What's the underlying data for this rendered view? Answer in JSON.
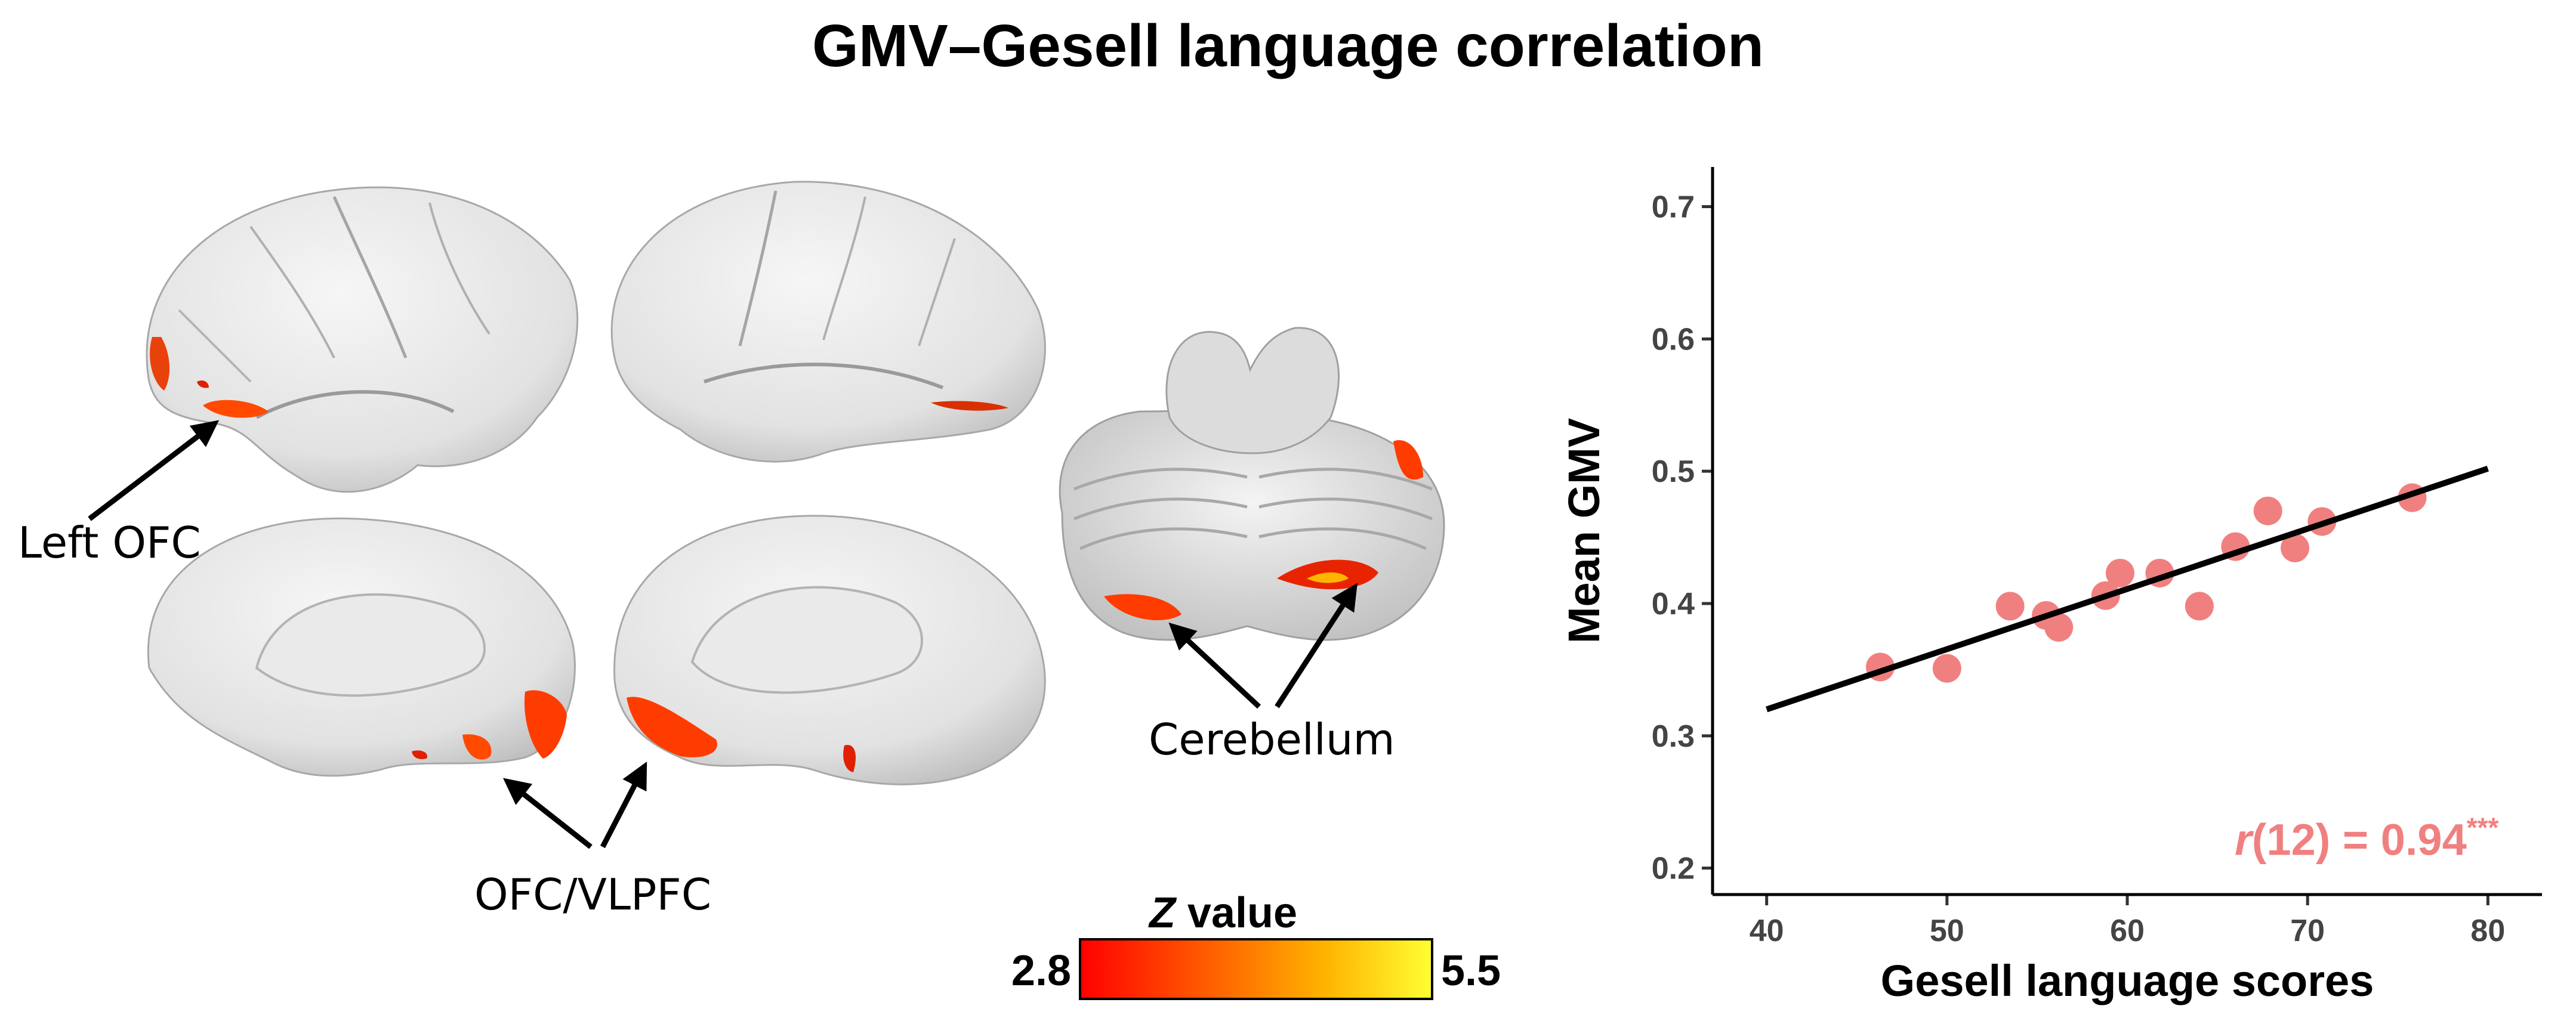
{
  "title": "GMV–Gesell language correlation",
  "brain_labels": {
    "left_ofc": "Left OFC",
    "ofc_vlpfc": "OFC/VLPFC",
    "cerebellum": "Cerebellum"
  },
  "colorbar": {
    "label_italic": "Z",
    "label_rest": " value",
    "min": "2.8",
    "max": "5.5",
    "colors": [
      "#ff0000",
      "#ff5a00",
      "#ffb400",
      "#ffff33"
    ]
  },
  "chart_data": {
    "type": "scatter",
    "xlabel": "Gesell language scores",
    "ylabel": "Mean GMV",
    "xlim": [
      37,
      83
    ],
    "ylim": [
      0.18,
      0.73
    ],
    "xticks": [
      40,
      50,
      60,
      70,
      80
    ],
    "yticks": [
      0.2,
      0.3,
      0.4,
      0.5,
      0.6,
      0.7
    ],
    "grid": false,
    "point_color": "#f08080",
    "line_color": "#000000",
    "points": [
      {
        "x": 46.3,
        "y": 0.352
      },
      {
        "x": 50.0,
        "y": 0.351
      },
      {
        "x": 53.5,
        "y": 0.398
      },
      {
        "x": 55.5,
        "y": 0.391
      },
      {
        "x": 56.2,
        "y": 0.382
      },
      {
        "x": 58.8,
        "y": 0.406
      },
      {
        "x": 59.6,
        "y": 0.423
      },
      {
        "x": 61.8,
        "y": 0.423
      },
      {
        "x": 64.0,
        "y": 0.398
      },
      {
        "x": 66.0,
        "y": 0.443
      },
      {
        "x": 67.8,
        "y": 0.47
      },
      {
        "x": 69.3,
        "y": 0.442
      },
      {
        "x": 70.8,
        "y": 0.462
      },
      {
        "x": 75.8,
        "y": 0.48
      }
    ],
    "fit_line": {
      "x": [
        40,
        80
      ],
      "y": [
        0.32,
        0.502
      ]
    },
    "annotation": {
      "italic": "r",
      "rest": "(12) = 0.94",
      "sup": "***"
    }
  }
}
